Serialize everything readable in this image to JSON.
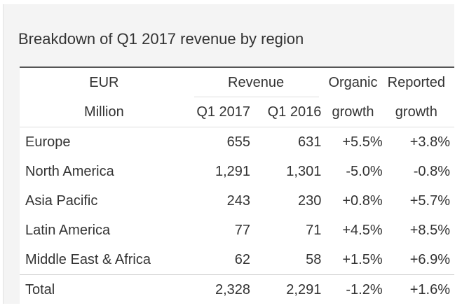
{
  "title": "Breakdown of Q1 2017 revenue by region",
  "table": {
    "header": {
      "unit_line1": "EUR",
      "unit_line2": "Million",
      "revenue": "Revenue",
      "q1_2017": "Q1 2017",
      "q1_2016": "Q1 2016",
      "organic_line1": "Organic",
      "organic_line2": "growth",
      "reported_line1": "Reported",
      "reported_line2": "growth"
    },
    "rows": [
      {
        "region": "Europe",
        "q1_2017": "655",
        "q1_2016": "631",
        "organic": "+5.5%",
        "reported": "+3.8%"
      },
      {
        "region": "North America",
        "q1_2017": "1,291",
        "q1_2016": "1,301",
        "organic": "-5.0%",
        "reported": "-0.8%"
      },
      {
        "region": "Asia Pacific",
        "q1_2017": "243",
        "q1_2016": "230",
        "organic": "+0.8%",
        "reported": "+5.7%"
      },
      {
        "region": "Latin America",
        "q1_2017": "77",
        "q1_2016": "71",
        "organic": "+4.5%",
        "reported": "+8.5%"
      },
      {
        "region": "Middle East & Africa",
        "q1_2017": "62",
        "q1_2016": "58",
        "organic": "+1.5%",
        "reported": "+6.9%"
      }
    ],
    "total": {
      "region": "Total",
      "q1_2017": "2,328",
      "q1_2016": "2,291",
      "organic": "-1.2%",
      "reported": "+1.6%"
    }
  }
}
